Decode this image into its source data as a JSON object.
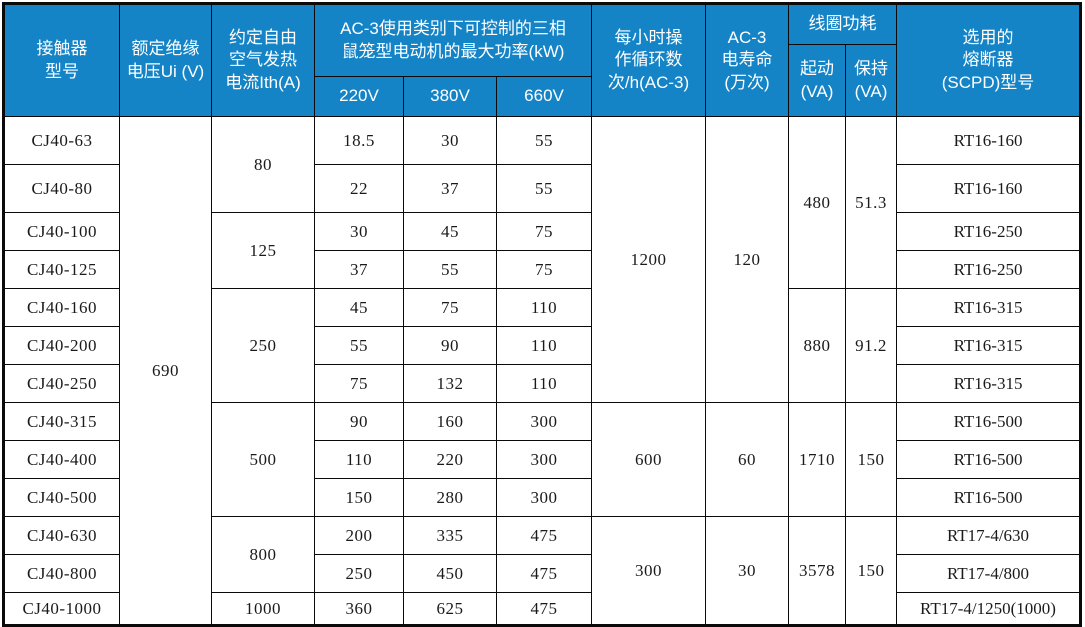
{
  "colors": {
    "header_bg": "#1484c7",
    "header_text": "#ffffff",
    "border": "#0a0a0a",
    "body_text": "#1a1a1a",
    "background": "#ffffff"
  },
  "table": {
    "header_rows": [
      [
        {
          "t": "接触器\n型号",
          "k": "model",
          "rs": 3
        },
        {
          "t": "额定绝缘\n电压Ui (V)",
          "k": "rated-insulation-voltage",
          "rs": 3
        },
        {
          "t": "约定自由\n空气发热\n电流Ith(A)",
          "k": "thermal-current",
          "rs": 3
        },
        {
          "t": "AC-3使用类别下可控制的三相\n鼠笼型电动机的最大功率(kW)",
          "k": "ac3-max-power-group",
          "cs": 3,
          "rs": 2
        },
        {
          "t": "每小时操\n作循环数\n次/h(AC-3)",
          "k": "operating-cycles",
          "rs": 3
        },
        {
          "t": "AC-3\n电寿命\n(万次)",
          "k": "electrical-life",
          "rs": 3
        },
        {
          "t": "线圈功耗",
          "k": "coil-power-group",
          "cs": 2
        },
        {
          "t": "选用的\n熔断器\n(SCPD)型号",
          "k": "fuse-model",
          "rs": 3
        }
      ],
      [
        {
          "t": "起动\n(VA)",
          "k": "start-va",
          "rs": 2
        },
        {
          "t": "保持\n(VA)",
          "k": "hold-va",
          "rs": 2
        }
      ],
      [
        {
          "t": "220V",
          "k": "p220"
        },
        {
          "t": "380V",
          "k": "p380"
        },
        {
          "t": "660V",
          "k": "p660"
        }
      ]
    ],
    "body_rows": [
      [
        {
          "v": "CJ40-63",
          "k": "model"
        },
        {
          "v": "690",
          "k": "rated-insulation-voltage",
          "rs": 13
        },
        {
          "v": "80",
          "k": "thermal-current",
          "rs": 2
        },
        {
          "v": "18.5",
          "k": "p220"
        },
        {
          "v": "30",
          "k": "p380"
        },
        {
          "v": "55",
          "k": "p660"
        },
        {
          "v": "1200",
          "k": "operating-cycles",
          "rs": 7
        },
        {
          "v": "120",
          "k": "electrical-life",
          "rs": 7
        },
        {
          "v": "480",
          "k": "start-va",
          "rs": 4
        },
        {
          "v": "51.3",
          "k": "hold-va",
          "rs": 4
        },
        {
          "v": "RT16-160",
          "k": "fuse"
        }
      ],
      [
        {
          "v": "CJ40-80",
          "k": "model"
        },
        {
          "v": "22",
          "k": "p220"
        },
        {
          "v": "37",
          "k": "p380"
        },
        {
          "v": "55",
          "k": "p660"
        },
        {
          "v": "RT16-160",
          "k": "fuse"
        }
      ],
      [
        {
          "v": "CJ40-100",
          "k": "model"
        },
        {
          "v": "125",
          "k": "thermal-current",
          "rs": 2
        },
        {
          "v": "30",
          "k": "p220"
        },
        {
          "v": "45",
          "k": "p380"
        },
        {
          "v": "75",
          "k": "p660"
        },
        {
          "v": "RT16-250",
          "k": "fuse"
        }
      ],
      [
        {
          "v": "CJ40-125",
          "k": "model"
        },
        {
          "v": "37",
          "k": "p220"
        },
        {
          "v": "55",
          "k": "p380"
        },
        {
          "v": "75",
          "k": "p660"
        },
        {
          "v": "RT16-250",
          "k": "fuse"
        }
      ],
      [
        {
          "v": "CJ40-160",
          "k": "model"
        },
        {
          "v": "250",
          "k": "thermal-current",
          "rs": 3
        },
        {
          "v": "45",
          "k": "p220"
        },
        {
          "v": "75",
          "k": "p380"
        },
        {
          "v": "110",
          "k": "p660"
        },
        {
          "v": "880",
          "k": "start-va",
          "rs": 3
        },
        {
          "v": "91.2",
          "k": "hold-va",
          "rs": 3
        },
        {
          "v": "RT16-315",
          "k": "fuse"
        }
      ],
      [
        {
          "v": "CJ40-200",
          "k": "model"
        },
        {
          "v": "55",
          "k": "p220"
        },
        {
          "v": "90",
          "k": "p380"
        },
        {
          "v": "110",
          "k": "p660"
        },
        {
          "v": "RT16-315",
          "k": "fuse"
        }
      ],
      [
        {
          "v": "CJ40-250",
          "k": "model"
        },
        {
          "v": "75",
          "k": "p220"
        },
        {
          "v": "132",
          "k": "p380"
        },
        {
          "v": "110",
          "k": "p660"
        },
        {
          "v": "RT16-315",
          "k": "fuse"
        }
      ],
      [
        {
          "v": "CJ40-315",
          "k": "model"
        },
        {
          "v": "500",
          "k": "thermal-current",
          "rs": 3
        },
        {
          "v": "90",
          "k": "p220"
        },
        {
          "v": "160",
          "k": "p380"
        },
        {
          "v": "300",
          "k": "p660"
        },
        {
          "v": "600",
          "k": "operating-cycles",
          "rs": 3
        },
        {
          "v": "60",
          "k": "electrical-life",
          "rs": 3
        },
        {
          "v": "1710",
          "k": "start-va",
          "rs": 3
        },
        {
          "v": "150",
          "k": "hold-va",
          "rs": 3
        },
        {
          "v": "RT16-500",
          "k": "fuse"
        }
      ],
      [
        {
          "v": "CJ40-400",
          "k": "model"
        },
        {
          "v": "110",
          "k": "p220"
        },
        {
          "v": "220",
          "k": "p380"
        },
        {
          "v": "300",
          "k": "p660"
        },
        {
          "v": "RT16-500",
          "k": "fuse"
        }
      ],
      [
        {
          "v": "CJ40-500",
          "k": "model"
        },
        {
          "v": "150",
          "k": "p220"
        },
        {
          "v": "280",
          "k": "p380"
        },
        {
          "v": "300",
          "k": "p660"
        },
        {
          "v": "RT16-500",
          "k": "fuse"
        }
      ],
      [
        {
          "v": "CJ40-630",
          "k": "model"
        },
        {
          "v": "800",
          "k": "thermal-current",
          "rs": 2
        },
        {
          "v": "200",
          "k": "p220"
        },
        {
          "v": "335",
          "k": "p380"
        },
        {
          "v": "475",
          "k": "p660"
        },
        {
          "v": "300",
          "k": "operating-cycles",
          "rs": 3
        },
        {
          "v": "30",
          "k": "electrical-life",
          "rs": 3
        },
        {
          "v": "3578",
          "k": "start-va",
          "rs": 3
        },
        {
          "v": "150",
          "k": "hold-va",
          "rs": 3
        },
        {
          "v": "RT17-4/630",
          "k": "fuse"
        }
      ],
      [
        {
          "v": "CJ40-800",
          "k": "model"
        },
        {
          "v": "250",
          "k": "p220"
        },
        {
          "v": "450",
          "k": "p380"
        },
        {
          "v": "475",
          "k": "p660"
        },
        {
          "v": "RT17-4/800",
          "k": "fuse"
        }
      ],
      [
        {
          "v": "CJ40-1000",
          "k": "model"
        },
        {
          "v": "1000",
          "k": "thermal-current"
        },
        {
          "v": "360",
          "k": "p220"
        },
        {
          "v": "625",
          "k": "p380"
        },
        {
          "v": "475",
          "k": "p660"
        },
        {
          "v": "RT17-4/1250(1000)",
          "k": "fuse"
        }
      ]
    ]
  }
}
